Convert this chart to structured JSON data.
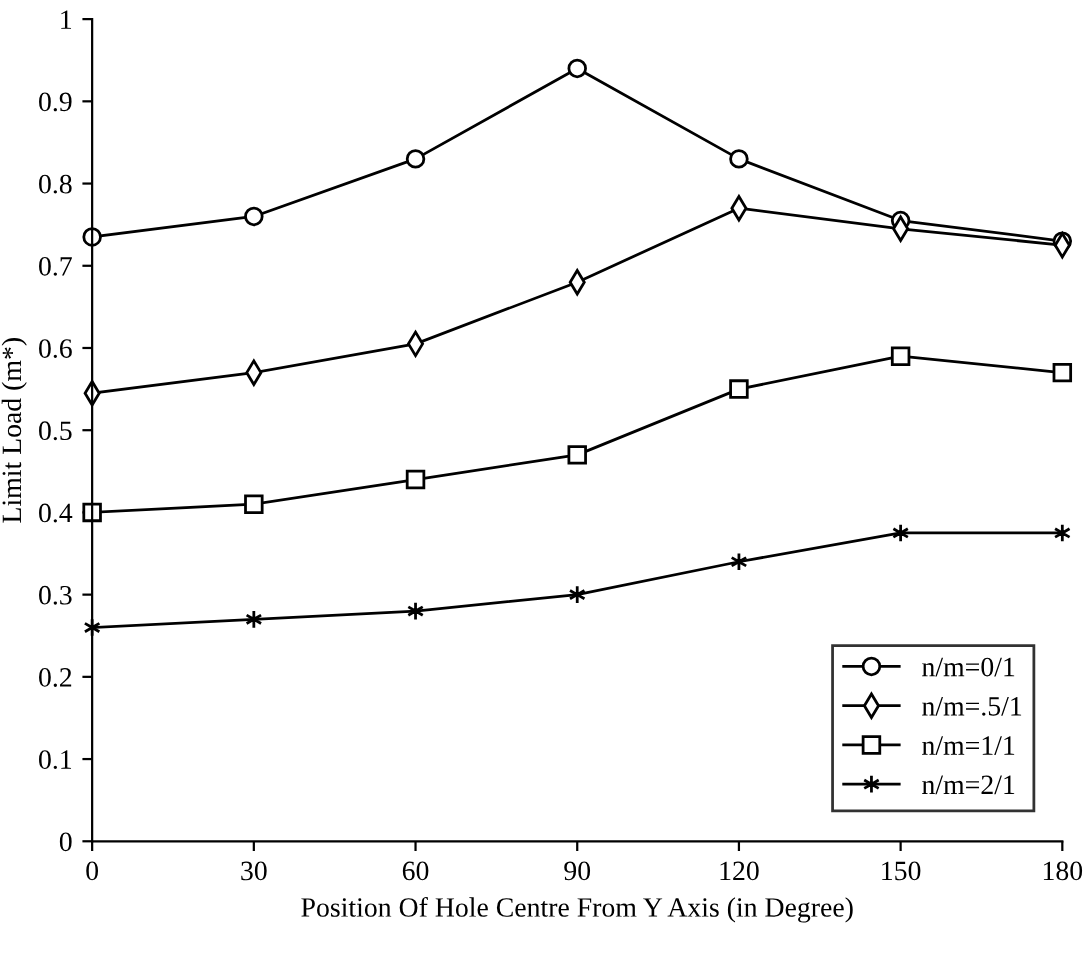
{
  "chart_data": {
    "type": "line",
    "xlabel": "Position Of Hole Centre From Y Axis (in Degree)",
    "ylabel": "Limit Load (m*)",
    "x": [
      0,
      30,
      60,
      90,
      120,
      150,
      180
    ],
    "series": [
      {
        "name": "n/m=0/1",
        "color": "#000000",
        "marker": "circle",
        "values": [
          0.735,
          0.76,
          0.83,
          0.94,
          0.83,
          0.755,
          0.73
        ]
      },
      {
        "name": "n/m=.5/1",
        "color": "#000000",
        "marker": "diamond",
        "values": [
          0.545,
          0.57,
          0.605,
          0.68,
          0.77,
          0.745,
          0.725
        ]
      },
      {
        "name": "n/m=1/1",
        "color": "#000000",
        "marker": "square",
        "values": [
          0.4,
          0.41,
          0.44,
          0.47,
          0.55,
          0.59,
          0.57
        ]
      },
      {
        "name": "n/m=2/1",
        "color": "#000000",
        "marker": "cross",
        "values": [
          0.26,
          0.27,
          0.28,
          0.3,
          0.34,
          0.375,
          0.375
        ]
      }
    ],
    "xlim": [
      0,
      180
    ],
    "ylim": [
      0,
      1
    ],
    "xticks": [
      0,
      30,
      60,
      90,
      120,
      150,
      180
    ],
    "yticks": [
      0,
      0.1,
      0.2,
      0.3,
      0.4,
      0.5,
      0.6,
      0.7,
      0.8,
      0.9,
      1
    ],
    "grid": false,
    "legend": "bottom right",
    "line_style": "solid"
  }
}
